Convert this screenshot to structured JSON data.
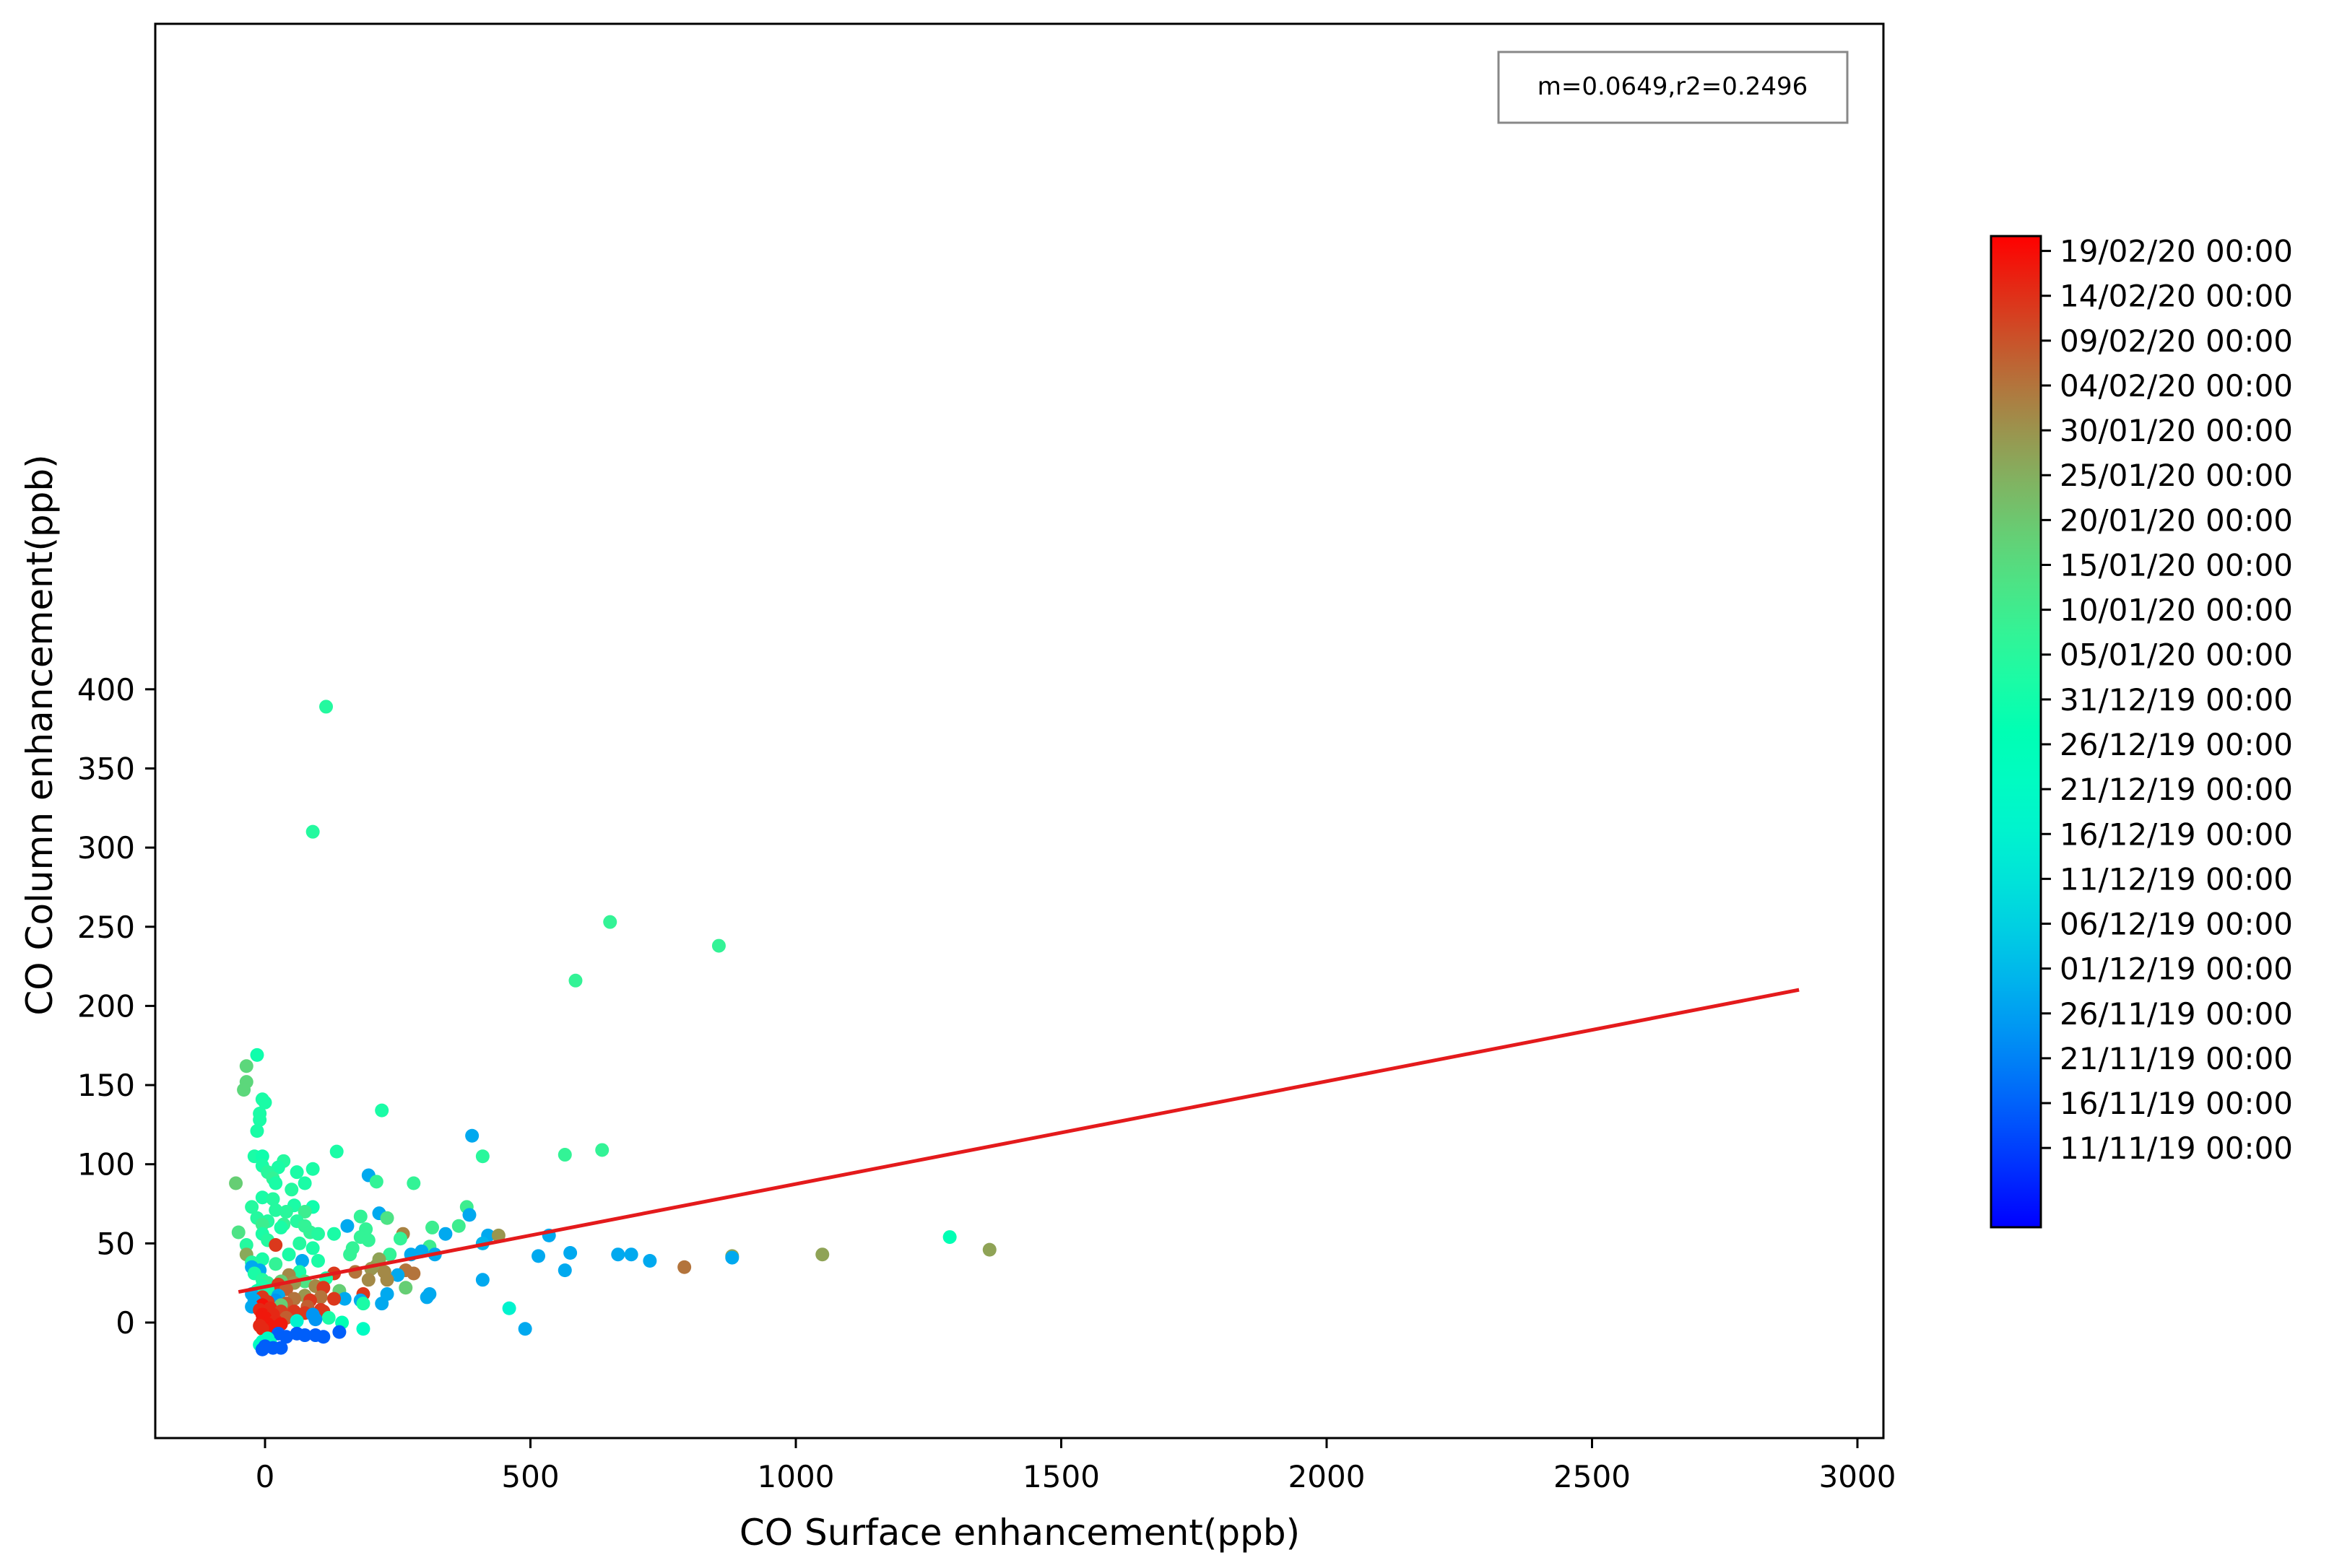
{
  "chart_data": {
    "type": "scatter",
    "title": "",
    "xlabel": "CO Surface enhancement(ppb)",
    "ylabel": "CO Column enhancement(ppb)",
    "xlim": [
      -205,
      3050
    ],
    "ylim": [
      -37,
      408
    ],
    "xticks": [
      0,
      500,
      1000,
      1500,
      2000,
      2500,
      3000
    ],
    "yticks": [
      0,
      50,
      100,
      150,
      200,
      250,
      300,
      350,
      400
    ],
    "grid": false,
    "annotation": "m=0.0649,r2=0.2496",
    "annotation_position": "top-right",
    "regression_line": {
      "slope": 0.0649,
      "intercept": 22.6,
      "x_range": [
        -50,
        2890
      ],
      "color": "#e41a1c"
    },
    "colorbar": {
      "cmap": "rainbow",
      "labels": [
        "11/11/19 00:00",
        "16/11/19 00:00",
        "21/11/19 00:00",
        "26/11/19 00:00",
        "01/12/19 00:00",
        "06/12/19 00:00",
        "11/12/19 00:00",
        "16/12/19 00:00",
        "21/12/19 00:00",
        "26/12/19 00:00",
        "31/12/19 00:00",
        "05/01/20 00:00",
        "10/01/20 00:00",
        "15/01/20 00:00",
        "20/01/20 00:00",
        "25/01/20 00:00",
        "30/01/20 00:00",
        "04/02/20 00:00",
        "09/02/20 00:00",
        "14/02/20 00:00",
        "19/02/20 00:00"
      ],
      "range": [
        0.08,
        0.985
      ]
    },
    "points": [
      {
        "x": 115,
        "y": 389,
        "c": 0.57
      },
      {
        "x": 90,
        "y": 310,
        "c": 0.57
      },
      {
        "x": 650,
        "y": 253,
        "c": 0.6
      },
      {
        "x": 855,
        "y": 238,
        "c": 0.6
      },
      {
        "x": 585,
        "y": 216,
        "c": 0.6
      },
      {
        "x": -15,
        "y": 169,
        "c": 0.53
      },
      {
        "x": -35,
        "y": 162,
        "c": 0.68
      },
      {
        "x": -35,
        "y": 152,
        "c": 0.68
      },
      {
        "x": -40,
        "y": 147,
        "c": 0.68
      },
      {
        "x": -5,
        "y": 141,
        "c": 0.55
      },
      {
        "x": 0,
        "y": 139,
        "c": 0.55
      },
      {
        "x": 220,
        "y": 134,
        "c": 0.55
      },
      {
        "x": -10,
        "y": 132,
        "c": 0.55
      },
      {
        "x": -10,
        "y": 128,
        "c": 0.55
      },
      {
        "x": -15,
        "y": 121,
        "c": 0.55
      },
      {
        "x": 390,
        "y": 118,
        "c": 0.23
      },
      {
        "x": 635,
        "y": 109,
        "c": 0.6
      },
      {
        "x": 135,
        "y": 108,
        "c": 0.55
      },
      {
        "x": 565,
        "y": 106,
        "c": 0.6
      },
      {
        "x": 410,
        "y": 105,
        "c": 0.58
      },
      {
        "x": -20,
        "y": 105,
        "c": 0.55
      },
      {
        "x": -5,
        "y": 105,
        "c": 0.53
      },
      {
        "x": 35,
        "y": 102,
        "c": 0.57
      },
      {
        "x": -5,
        "y": 99,
        "c": 0.55
      },
      {
        "x": 25,
        "y": 98,
        "c": 0.55
      },
      {
        "x": 90,
        "y": 97,
        "c": 0.55
      },
      {
        "x": 5,
        "y": 95,
        "c": 0.58
      },
      {
        "x": 60,
        "y": 95,
        "c": 0.55
      },
      {
        "x": 195,
        "y": 93,
        "c": 0.23
      },
      {
        "x": 15,
        "y": 91,
        "c": 0.6
      },
      {
        "x": -55,
        "y": 88,
        "c": 0.7
      },
      {
        "x": 210,
        "y": 89,
        "c": 0.6
      },
      {
        "x": 280,
        "y": 88,
        "c": 0.6
      },
      {
        "x": 75,
        "y": 88,
        "c": 0.55
      },
      {
        "x": 20,
        "y": 88,
        "c": 0.55
      },
      {
        "x": 50,
        "y": 84,
        "c": 0.57
      },
      {
        "x": -5,
        "y": 79,
        "c": 0.55
      },
      {
        "x": 15,
        "y": 78,
        "c": 0.57
      },
      {
        "x": 55,
        "y": 74,
        "c": 0.55
      },
      {
        "x": 90,
        "y": 73,
        "c": 0.53
      },
      {
        "x": -25,
        "y": 73,
        "c": 0.57
      },
      {
        "x": 380,
        "y": 73,
        "c": 0.62
      },
      {
        "x": 20,
        "y": 71,
        "c": 0.57
      },
      {
        "x": 40,
        "y": 70,
        "c": 0.58
      },
      {
        "x": 75,
        "y": 70,
        "c": 0.62
      },
      {
        "x": 215,
        "y": 69,
        "c": 0.23
      },
      {
        "x": 385,
        "y": 68,
        "c": 0.23
      },
      {
        "x": 180,
        "y": 67,
        "c": 0.6
      },
      {
        "x": 230,
        "y": 66,
        "c": 0.65
      },
      {
        "x": -15,
        "y": 66,
        "c": 0.57
      },
      {
        "x": 5,
        "y": 64,
        "c": 0.57
      },
      {
        "x": 60,
        "y": 64,
        "c": 0.57
      },
      {
        "x": 35,
        "y": 62,
        "c": 0.6
      },
      {
        "x": -5,
        "y": 62,
        "c": 0.62
      },
      {
        "x": 75,
        "y": 61,
        "c": 0.6
      },
      {
        "x": 155,
        "y": 61,
        "c": 0.23
      },
      {
        "x": 365,
        "y": 61,
        "c": 0.62
      },
      {
        "x": 30,
        "y": 60,
        "c": 0.55
      },
      {
        "x": 315,
        "y": 60,
        "c": 0.62
      },
      {
        "x": 190,
        "y": 59,
        "c": 0.6
      },
      {
        "x": -50,
        "y": 57,
        "c": 0.65
      },
      {
        "x": 85,
        "y": 57,
        "c": 0.6
      },
      {
        "x": 100,
        "y": 56,
        "c": 0.57
      },
      {
        "x": 130,
        "y": 56,
        "c": 0.55
      },
      {
        "x": 260,
        "y": 56,
        "c": 0.83
      },
      {
        "x": -5,
        "y": 56,
        "c": 0.55
      },
      {
        "x": 340,
        "y": 56,
        "c": 0.23
      },
      {
        "x": 420,
        "y": 55,
        "c": 0.23
      },
      {
        "x": 440,
        "y": 55,
        "c": 0.8
      },
      {
        "x": 535,
        "y": 55,
        "c": 0.23
      },
      {
        "x": 1290,
        "y": 54,
        "c": 0.5
      },
      {
        "x": 180,
        "y": 54,
        "c": 0.6
      },
      {
        "x": 255,
        "y": 53,
        "c": 0.6
      },
      {
        "x": 5,
        "y": 52,
        "c": 0.57
      },
      {
        "x": 195,
        "y": 52,
        "c": 0.6
      },
      {
        "x": 410,
        "y": 50,
        "c": 0.25
      },
      {
        "x": 65,
        "y": 50,
        "c": 0.57
      },
      {
        "x": -35,
        "y": 49,
        "c": 0.57
      },
      {
        "x": 20,
        "y": 49,
        "c": 0.93
      },
      {
        "x": 310,
        "y": 48,
        "c": 0.62
      },
      {
        "x": 90,
        "y": 47,
        "c": 0.55
      },
      {
        "x": 165,
        "y": 47,
        "c": 0.6
      },
      {
        "x": 1365,
        "y": 46,
        "c": 0.78
      },
      {
        "x": 295,
        "y": 45,
        "c": 0.23
      },
      {
        "x": -35,
        "y": 43,
        "c": 0.77
      },
      {
        "x": 45,
        "y": 43,
        "c": 0.55
      },
      {
        "x": 160,
        "y": 43,
        "c": 0.6
      },
      {
        "x": 235,
        "y": 43,
        "c": 0.6
      },
      {
        "x": 275,
        "y": 43,
        "c": 0.23
      },
      {
        "x": 320,
        "y": 43,
        "c": 0.23
      },
      {
        "x": 575,
        "y": 44,
        "c": 0.23
      },
      {
        "x": 665,
        "y": 43,
        "c": 0.23
      },
      {
        "x": 690,
        "y": 43,
        "c": 0.23
      },
      {
        "x": 1050,
        "y": 43,
        "c": 0.78
      },
      {
        "x": 880,
        "y": 42,
        "c": 0.78
      },
      {
        "x": 515,
        "y": 42,
        "c": 0.23
      },
      {
        "x": 880,
        "y": 41,
        "c": 0.23
      },
      {
        "x": 725,
        "y": 39,
        "c": 0.23
      },
      {
        "x": -5,
        "y": 40,
        "c": 0.55
      },
      {
        "x": 215,
        "y": 40,
        "c": 0.78
      },
      {
        "x": 70,
        "y": 39,
        "c": 0.23
      },
      {
        "x": 100,
        "y": 39,
        "c": 0.55
      },
      {
        "x": -25,
        "y": 38,
        "c": 0.57
      },
      {
        "x": 20,
        "y": 37,
        "c": 0.6
      },
      {
        "x": 210,
        "y": 36,
        "c": 0.78
      },
      {
        "x": -25,
        "y": 35,
        "c": 0.23
      },
      {
        "x": 790,
        "y": 35,
        "c": 0.85
      },
      {
        "x": 200,
        "y": 34,
        "c": 0.8
      },
      {
        "x": 265,
        "y": 33,
        "c": 0.85
      },
      {
        "x": 565,
        "y": 33,
        "c": 0.23
      },
      {
        "x": -10,
        "y": 33,
        "c": 0.23
      },
      {
        "x": 65,
        "y": 32,
        "c": 0.55
      },
      {
        "x": 170,
        "y": 32,
        "c": 0.85
      },
      {
        "x": 225,
        "y": 32,
        "c": 0.82
      },
      {
        "x": 280,
        "y": 31,
        "c": 0.85
      },
      {
        "x": -20,
        "y": 31,
        "c": 0.55
      },
      {
        "x": 130,
        "y": 31,
        "c": 0.93
      },
      {
        "x": 45,
        "y": 30,
        "c": 0.82
      },
      {
        "x": 250,
        "y": 30,
        "c": 0.23
      },
      {
        "x": 115,
        "y": 28,
        "c": 0.55
      },
      {
        "x": 195,
        "y": 27,
        "c": 0.82
      },
      {
        "x": 230,
        "y": 27,
        "c": 0.82
      },
      {
        "x": 410,
        "y": 27,
        "c": 0.23
      },
      {
        "x": -5,
        "y": 27,
        "c": 0.57
      },
      {
        "x": 30,
        "y": 26,
        "c": 0.7
      },
      {
        "x": 75,
        "y": 26,
        "c": 0.65
      },
      {
        "x": 5,
        "y": 25,
        "c": 0.6
      },
      {
        "x": 55,
        "y": 25,
        "c": 0.8
      },
      {
        "x": 25,
        "y": 24,
        "c": 0.93
      },
      {
        "x": -5,
        "y": 23,
        "c": 0.55
      },
      {
        "x": 95,
        "y": 23,
        "c": 0.82
      },
      {
        "x": 265,
        "y": 22,
        "c": 0.7
      },
      {
        "x": 110,
        "y": 22,
        "c": 0.93
      },
      {
        "x": 5,
        "y": 21,
        "c": 0.55
      },
      {
        "x": 40,
        "y": 21,
        "c": 0.88
      },
      {
        "x": 140,
        "y": 20,
        "c": 0.7
      },
      {
        "x": -15,
        "y": 20,
        "c": 0.53
      },
      {
        "x": -25,
        "y": 18,
        "c": 0.23
      },
      {
        "x": 185,
        "y": 18,
        "c": 0.93
      },
      {
        "x": 230,
        "y": 18,
        "c": 0.23
      },
      {
        "x": 310,
        "y": 18,
        "c": 0.23
      },
      {
        "x": 25,
        "y": 17,
        "c": 0.23
      },
      {
        "x": 75,
        "y": 17,
        "c": 0.8
      },
      {
        "x": -5,
        "y": 16,
        "c": 0.93
      },
      {
        "x": 105,
        "y": 16,
        "c": 0.85
      },
      {
        "x": 305,
        "y": 16,
        "c": 0.23
      },
      {
        "x": 150,
        "y": 15,
        "c": 0.23
      },
      {
        "x": 130,
        "y": 15,
        "c": 0.93
      },
      {
        "x": 55,
        "y": 15,
        "c": 0.85
      },
      {
        "x": -20,
        "y": 14,
        "c": 0.23
      },
      {
        "x": 20,
        "y": 14,
        "c": 0.2
      },
      {
        "x": 85,
        "y": 14,
        "c": 0.93
      },
      {
        "x": 180,
        "y": 14,
        "c": 0.23
      },
      {
        "x": 5,
        "y": 13,
        "c": 0.93
      },
      {
        "x": 40,
        "y": 12,
        "c": 0.88
      },
      {
        "x": 220,
        "y": 12,
        "c": 0.23
      },
      {
        "x": 185,
        "y": 12,
        "c": 0.55
      },
      {
        "x": -5,
        "y": 11,
        "c": 0.98
      },
      {
        "x": 30,
        "y": 11,
        "c": 0.7
      },
      {
        "x": -25,
        "y": 10,
        "c": 0.23
      },
      {
        "x": 80,
        "y": 10,
        "c": 0.88
      },
      {
        "x": 10,
        "y": 9,
        "c": 0.95
      },
      {
        "x": 460,
        "y": 9,
        "c": 0.4
      },
      {
        "x": 105,
        "y": 8,
        "c": 0.93
      },
      {
        "x": -10,
        "y": 8,
        "c": 0.95
      },
      {
        "x": 55,
        "y": 7,
        "c": 0.93
      },
      {
        "x": 30,
        "y": 7,
        "c": 0.92
      },
      {
        "x": 110,
        "y": 7,
        "c": 0.93
      },
      {
        "x": 75,
        "y": 6,
        "c": 0.93
      },
      {
        "x": -5,
        "y": 5,
        "c": 0.97
      },
      {
        "x": 15,
        "y": 5,
        "c": 0.95
      },
      {
        "x": 90,
        "y": 5,
        "c": 0.2
      },
      {
        "x": 0,
        "y": 3,
        "c": 0.97
      },
      {
        "x": 40,
        "y": 3,
        "c": 0.88
      },
      {
        "x": 120,
        "y": 3,
        "c": 0.55
      },
      {
        "x": -5,
        "y": 1,
        "c": 0.97
      },
      {
        "x": 20,
        "y": 1,
        "c": 0.95
      },
      {
        "x": 60,
        "y": 1,
        "c": 0.4
      },
      {
        "x": 95,
        "y": 2,
        "c": 0.2
      },
      {
        "x": 145,
        "y": 0,
        "c": 0.5
      },
      {
        "x": 5,
        "y": -1,
        "c": 0.97
      },
      {
        "x": 30,
        "y": -1,
        "c": 0.97
      },
      {
        "x": -10,
        "y": -2,
        "c": 0.95
      },
      {
        "x": 15,
        "y": -3,
        "c": 0.97
      },
      {
        "x": 185,
        "y": -4,
        "c": 0.45
      },
      {
        "x": 490,
        "y": -4,
        "c": 0.23
      },
      {
        "x": -5,
        "y": -4,
        "c": 0.95
      },
      {
        "x": 140,
        "y": -6,
        "c": 0.12
      },
      {
        "x": 25,
        "y": -7,
        "c": 0.12
      },
      {
        "x": 60,
        "y": -7,
        "c": 0.12
      },
      {
        "x": 75,
        "y": -8,
        "c": 0.12
      },
      {
        "x": 95,
        "y": -8,
        "c": 0.12
      },
      {
        "x": 110,
        "y": -9,
        "c": 0.12
      },
      {
        "x": 40,
        "y": -9,
        "c": 0.12
      },
      {
        "x": 5,
        "y": -10,
        "c": 0.45
      },
      {
        "x": -5,
        "y": -12,
        "c": 0.45
      },
      {
        "x": 10,
        "y": -13,
        "c": 0.45
      },
      {
        "x": -10,
        "y": -14,
        "c": 0.45
      },
      {
        "x": 0,
        "y": -15,
        "c": 0.12
      },
      {
        "x": 30,
        "y": -16,
        "c": 0.12
      },
      {
        "x": -5,
        "y": -17,
        "c": 0.12
      },
      {
        "x": 15,
        "y": -16,
        "c": 0.12
      }
    ]
  }
}
